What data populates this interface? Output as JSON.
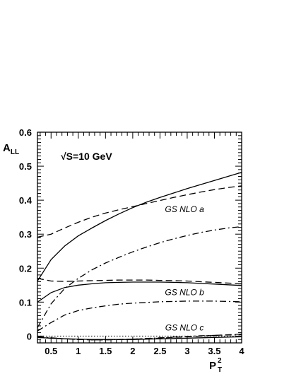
{
  "chart_data": {
    "type": "line",
    "title": "",
    "ylabel": "A",
    "ylabel_sub": "LL",
    "xlabel": "P",
    "xlabel_sup": "2",
    "xlabel_sub": "T",
    "annotation": "√S=10 GeV",
    "xlim": [
      0.25,
      4.0
    ],
    "ylim": [
      -0.02,
      0.6
    ],
    "xticks": [
      0.5,
      1,
      1.5,
      2,
      2.5,
      3,
      3.5,
      4
    ],
    "xtick_labels": [
      "0.5",
      "1",
      "1.5",
      "2",
      "2.5",
      "3",
      "3.5",
      "4"
    ],
    "yticks": [
      0,
      0.1,
      0.2,
      0.3,
      0.4,
      0.5,
      0.6
    ],
    "ytick_labels": [
      "0",
      "0.1",
      "0.2",
      "0.3",
      "0.4",
      "0.5",
      "0.6"
    ],
    "grid": false,
    "group_labels": [
      {
        "text": "GS NLO a",
        "x": 2.95,
        "y": 0.365
      },
      {
        "text": "GS NLO b",
        "x": 2.95,
        "y": 0.12
      },
      {
        "text": "GS NLO c",
        "x": 2.95,
        "y": 0.016
      }
    ],
    "series": [
      {
        "style": "solid",
        "x": [
          0.25,
          0.5,
          0.75,
          1,
          1.25,
          1.5,
          1.75,
          2,
          2.25,
          2.5,
          2.75,
          3,
          3.25,
          3.5,
          3.75,
          4
        ],
        "y": [
          0.162,
          0.225,
          0.265,
          0.295,
          0.318,
          0.34,
          0.36,
          0.378,
          0.394,
          0.408,
          0.421,
          0.434,
          0.446,
          0.458,
          0.47,
          0.482
        ]
      },
      {
        "style": "dashed",
        "x": [
          0.25,
          0.5,
          0.75,
          1,
          1.25,
          1.5,
          1.75,
          2,
          2.25,
          2.5,
          2.75,
          3,
          3.25,
          3.5,
          3.75,
          4
        ],
        "y": [
          0.291,
          0.3,
          0.318,
          0.335,
          0.35,
          0.362,
          0.372,
          0.381,
          0.39,
          0.399,
          0.408,
          0.416,
          0.424,
          0.431,
          0.437,
          0.442
        ]
      },
      {
        "style": "dashdot",
        "x": [
          0.25,
          0.5,
          0.75,
          1,
          1.25,
          1.5,
          1.75,
          2,
          2.25,
          2.5,
          2.75,
          3,
          3.25,
          3.5,
          3.75,
          4
        ],
        "y": [
          0.025,
          0.095,
          0.14,
          0.17,
          0.195,
          0.215,
          0.232,
          0.248,
          0.262,
          0.275,
          0.286,
          0.296,
          0.305,
          0.312,
          0.318,
          0.322
        ]
      },
      {
        "style": "solid",
        "x": [
          0.25,
          0.5,
          0.75,
          1,
          1.25,
          1.5,
          1.75,
          2,
          2.25,
          2.5,
          2.75,
          3,
          3.25,
          3.5,
          3.75,
          4
        ],
        "y": [
          0.1,
          0.128,
          0.143,
          0.15,
          0.154,
          0.157,
          0.158,
          0.159,
          0.159,
          0.159,
          0.158,
          0.157,
          0.155,
          0.153,
          0.151,
          0.149
        ]
      },
      {
        "style": "dashed",
        "x": [
          0.25,
          0.5,
          0.75,
          1,
          1.25,
          1.5,
          1.75,
          2,
          2.25,
          2.5,
          2.75,
          3,
          3.25,
          3.5,
          3.75,
          4
        ],
        "y": [
          0.17,
          0.162,
          0.161,
          0.162,
          0.163,
          0.164,
          0.165,
          0.165,
          0.165,
          0.164,
          0.163,
          0.162,
          0.16,
          0.158,
          0.156,
          0.154
        ]
      },
      {
        "style": "dashdot",
        "x": [
          0.25,
          0.5,
          0.75,
          1,
          1.25,
          1.5,
          1.75,
          2,
          2.25,
          2.5,
          2.75,
          3,
          3.25,
          3.5,
          3.75,
          4
        ],
        "y": [
          0.015,
          0.04,
          0.062,
          0.075,
          0.083,
          0.089,
          0.094,
          0.097,
          0.099,
          0.101,
          0.102,
          0.103,
          0.103,
          0.103,
          0.102,
          0.101
        ]
      },
      {
        "style": "dotted",
        "x": [
          0.25,
          4
        ],
        "y": [
          0.0,
          0.0
        ]
      },
      {
        "style": "solid",
        "x": [
          0.25,
          0.5,
          0.75,
          1,
          1.25,
          1.5,
          1.75,
          2,
          2.25,
          2.5,
          2.75,
          3,
          3.25,
          3.5,
          3.75,
          4
        ],
        "y": [
          -0.004,
          -0.006,
          -0.008,
          -0.009,
          -0.01,
          -0.01,
          -0.01,
          -0.01,
          -0.009,
          -0.008,
          -0.007,
          -0.006,
          -0.005,
          -0.004,
          -0.003,
          -0.002
        ]
      },
      {
        "style": "dashed",
        "x": [
          0.25,
          0.5,
          0.75,
          1,
          1.25,
          1.5,
          1.75,
          2,
          2.25,
          2.5,
          2.75,
          3,
          3.25,
          3.5,
          3.75,
          4
        ],
        "y": [
          -0.003,
          -0.006,
          -0.008,
          -0.01,
          -0.011,
          -0.011,
          -0.01,
          -0.009,
          -0.008,
          -0.006,
          -0.004,
          -0.002,
          0.0,
          0.002,
          0.004,
          0.006
        ]
      },
      {
        "style": "dashdot",
        "x": [
          0.25,
          0.5,
          0.75,
          1,
          1.25,
          1.5,
          1.75,
          2,
          2.25,
          2.5,
          2.75,
          3,
          3.25,
          3.5,
          3.75,
          4
        ],
        "y": [
          -0.002,
          -0.005,
          -0.008,
          -0.01,
          -0.011,
          -0.011,
          -0.01,
          -0.009,
          -0.007,
          -0.005,
          -0.003,
          -0.001,
          0.001,
          0.002,
          0.003,
          0.004
        ]
      }
    ]
  }
}
